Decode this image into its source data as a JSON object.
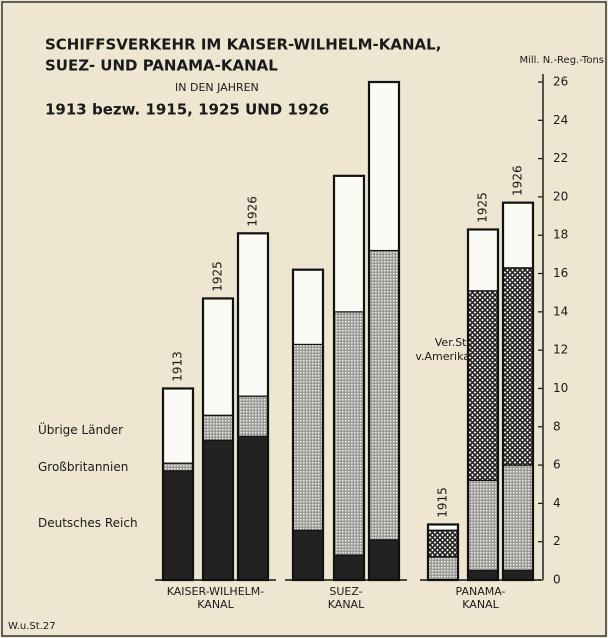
{
  "chart_data": {
    "type": "stacked_bar",
    "title": "SCHIFFSVERKEHR IM KAISER-WILHELM-KANAL,",
    "title2": "SUEZ- UND PANAMA-KANAL",
    "subtitle": "IN DEN JAHREN",
    "subtitle2": "1913 bezw. 1915, 1925 UND 1926",
    "y_axis_label": "Mill. N.-Reg.-Tons",
    "footer": "W.u.St.27",
    "groups": [
      "KAISER-WILHELM-KANAL",
      "SUEZ-KANAL",
      "PANAMA-KANAL"
    ],
    "categories": [
      "1913",
      "1925",
      "1926",
      null,
      null,
      null,
      "1915",
      "1925",
      "1926"
    ],
    "series": [
      {
        "name": "Deutsches Reich",
        "color": "#222222",
        "values": [
          5.7,
          7.3,
          7.5,
          2.6,
          1.3,
          2.1,
          0,
          0.5,
          0.5
        ]
      },
      {
        "name": "Großbritannien",
        "color": "#9a9a96",
        "values": [
          0.4,
          1.3,
          2.1,
          9.7,
          12.7,
          15.1,
          1.2,
          4.7,
          5.5
        ]
      },
      {
        "name": "Ver.St. v.Amerika",
        "color": "#555555",
        "values": [
          null,
          null,
          null,
          null,
          null,
          null,
          1.4,
          9.9,
          10.3
        ]
      },
      {
        "name": "Übrige Länder",
        "color": "#ffffff",
        "values": [
          3.9,
          6.1,
          8.5,
          3.9,
          7.1,
          8.8,
          0.3,
          3.2,
          3.4
        ]
      }
    ],
    "ylim": [
      0,
      26
    ],
    "yticks": [
      0,
      2,
      4,
      6,
      8,
      10,
      12,
      14,
      16,
      18,
      20,
      22,
      24,
      26
    ]
  }
}
